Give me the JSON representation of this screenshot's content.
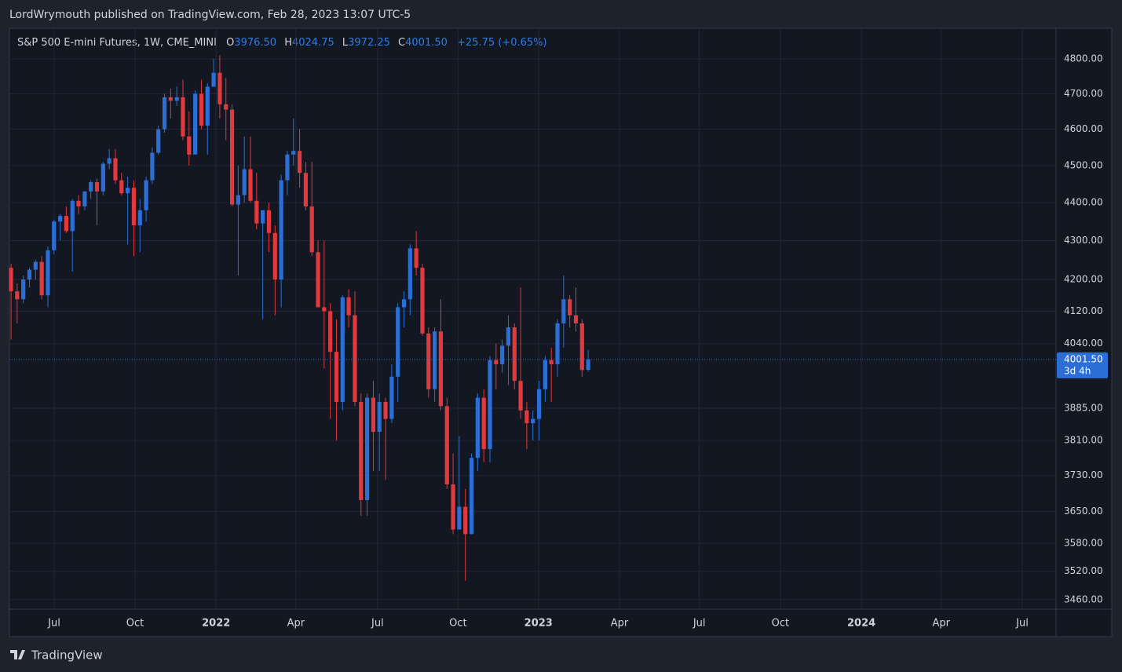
{
  "header": {
    "title": "LordWrymouth published on TradingView.com, Feb 28, 2023 13:07 UTC-5"
  },
  "footer": {
    "brand": "TradingView"
  },
  "chart_data": {
    "type": "candlestick",
    "title": "S&P 500 E-mini Futures, 1W, CME_MINI",
    "legend": {
      "o_label": "O",
      "o": "3976.50",
      "h_label": "H",
      "h": "4024.75",
      "l_label": "L",
      "l": "3972.25",
      "c_label": "C",
      "c": "4001.50",
      "change": "+25.75 (+0.65%)"
    },
    "last_price_label": "4001.50",
    "countdown": "3d 4h",
    "up_color": "#2b6fd6",
    "down_color": "#e0393e",
    "log_scale": true,
    "grid": true,
    "open": [
      4230,
      4170,
      4150,
      4200,
      4225,
      4245,
      4160,
      4275,
      4350,
      4365,
      4325,
      4405,
      4390,
      4430,
      4455,
      4430,
      4505,
      4520,
      4460,
      4425,
      4440,
      4340,
      4380,
      4460,
      4535,
      4600,
      4690,
      4680,
      4690,
      4580,
      4530,
      4700,
      4610,
      4720,
      4760,
      4670,
      4655,
      4395,
      4420,
      4490,
      4405,
      4345,
      4380,
      4320,
      4200,
      4460,
      4530,
      4540,
      4480,
      4390,
      4270,
      4130,
      4120,
      4020,
      3900,
      4155,
      4110,
      3900,
      3675,
      3910,
      3830,
      3900,
      3860,
      3960,
      4130,
      4150,
      4280,
      4230,
      4065,
      3930,
      4070,
      3890,
      3710,
      3610,
      3660,
      3600,
      3770,
      3910,
      3790,
      4000,
      3990,
      4035,
      4080,
      3950,
      3880,
      3850,
      3860,
      3930,
      4000,
      3990,
      4090,
      4150,
      4110,
      4090,
      3976.5
    ],
    "high": [
      4240,
      4190,
      4210,
      4230,
      4250,
      4260,
      4285,
      4355,
      4370,
      4390,
      4410,
      4420,
      4430,
      4460,
      4465,
      4510,
      4545,
      4545,
      4480,
      4470,
      4460,
      4410,
      4470,
      4550,
      4610,
      4700,
      4715,
      4720,
      4740,
      4650,
      4710,
      4740,
      4730,
      4800,
      4810,
      4745,
      4670,
      4500,
      4580,
      4580,
      4480,
      4380,
      4400,
      4340,
      4475,
      4540,
      4630,
      4600,
      4510,
      4510,
      4300,
      4300,
      4140,
      4100,
      4160,
      4175,
      4170,
      3920,
      3920,
      3950,
      3920,
      3910,
      3990,
      4140,
      4170,
      4290,
      4325,
      4240,
      4080,
      4080,
      4150,
      3910,
      3780,
      3820,
      3700,
      3780,
      3920,
      3930,
      4010,
      4040,
      4050,
      4110,
      4090,
      4180,
      3900,
      3880,
      3950,
      4010,
      4030,
      4100,
      4210,
      4160,
      4180,
      4100,
      4024.75
    ],
    "low": [
      4050,
      4090,
      4140,
      4180,
      4200,
      4150,
      4130,
      4265,
      4300,
      4320,
      4220,
      4370,
      4380,
      4410,
      4340,
      4420,
      4490,
      4450,
      4420,
      4290,
      4260,
      4270,
      4350,
      4450,
      4530,
      4590,
      4630,
      4665,
      4570,
      4500,
      4530,
      4600,
      4530,
      4720,
      4630,
      4570,
      4390,
      4210,
      4400,
      4400,
      4330,
      4100,
      4270,
      4110,
      4130,
      4420,
      4500,
      4440,
      4380,
      4260,
      4130,
      3980,
      3860,
      3810,
      3880,
      4080,
      3890,
      3640,
      3640,
      3740,
      3740,
      3720,
      3850,
      3900,
      4080,
      4110,
      4210,
      4060,
      3910,
      3900,
      3880,
      3700,
      3600,
      3610,
      3500,
      3600,
      3740,
      3760,
      3760,
      3930,
      3970,
      3940,
      3930,
      3860,
      3790,
      3810,
      3810,
      3900,
      3900,
      3960,
      4030,
      4080,
      4070,
      3960,
      3972.25
    ],
    "close": [
      4170,
      4150,
      4200,
      4225,
      4245,
      4160,
      4275,
      4350,
      4365,
      4325,
      4405,
      4390,
      4430,
      4455,
      4430,
      4505,
      4520,
      4460,
      4425,
      4440,
      4340,
      4380,
      4460,
      4535,
      4600,
      4690,
      4680,
      4690,
      4580,
      4530,
      4700,
      4610,
      4720,
      4760,
      4670,
      4655,
      4395,
      4420,
      4490,
      4405,
      4345,
      4380,
      4320,
      4200,
      4460,
      4530,
      4540,
      4480,
      4390,
      4270,
      4130,
      4120,
      4020,
      3900,
      4155,
      4110,
      3900,
      3675,
      3910,
      3830,
      3900,
      3860,
      3960,
      4130,
      4150,
      4280,
      4230,
      4065,
      3930,
      4070,
      3890,
      3710,
      3610,
      3660,
      3600,
      3770,
      3910,
      3790,
      4000,
      3990,
      4035,
      4080,
      3950,
      3880,
      3850,
      3860,
      3930,
      4000,
      3990,
      4090,
      4150,
      4110,
      4090,
      3976,
      4001.5
    ],
    "xlim": [
      -0.26,
      170.2
    ],
    "xticks": [
      {
        "value": 7.03,
        "label": "Jul"
      },
      {
        "value": 20.2,
        "label": "Oct"
      },
      {
        "value": 33.4,
        "label": "2022"
      },
      {
        "value": 46.4,
        "label": "Apr"
      },
      {
        "value": 59.7,
        "label": "Jul"
      },
      {
        "value": 72.8,
        "label": "Oct"
      },
      {
        "value": 85.9,
        "label": "2023"
      },
      {
        "value": 99.1,
        "label": "Apr"
      },
      {
        "value": 112.1,
        "label": "Jul"
      },
      {
        "value": 125.3,
        "label": "Oct"
      },
      {
        "value": 138.5,
        "label": "2024"
      },
      {
        "value": 151.5,
        "label": "Apr"
      },
      {
        "value": 164.7,
        "label": "Jul"
      }
    ],
    "ylim": [
      3440,
      4890
    ],
    "yticks": [
      {
        "value": 4800,
        "label": "4800.00"
      },
      {
        "value": 4700,
        "label": "4700.00"
      },
      {
        "value": 4600,
        "label": "4600.00"
      },
      {
        "value": 4500,
        "label": "4500.00"
      },
      {
        "value": 4400,
        "label": "4400.00"
      },
      {
        "value": 4300,
        "label": "4300.00"
      },
      {
        "value": 4200,
        "label": "4200.00"
      },
      {
        "value": 4120,
        "label": "4120.00"
      },
      {
        "value": 4040,
        "label": "4040.00"
      },
      {
        "value": 3885,
        "label": "3885.00"
      },
      {
        "value": 3810,
        "label": "3810.00"
      },
      {
        "value": 3730,
        "label": "3730.00"
      },
      {
        "value": 3650,
        "label": "3650.00"
      },
      {
        "value": 3580,
        "label": "3580.00"
      },
      {
        "value": 3520,
        "label": "3520.00"
      },
      {
        "value": 3460,
        "label": "3460.00"
      }
    ]
  }
}
